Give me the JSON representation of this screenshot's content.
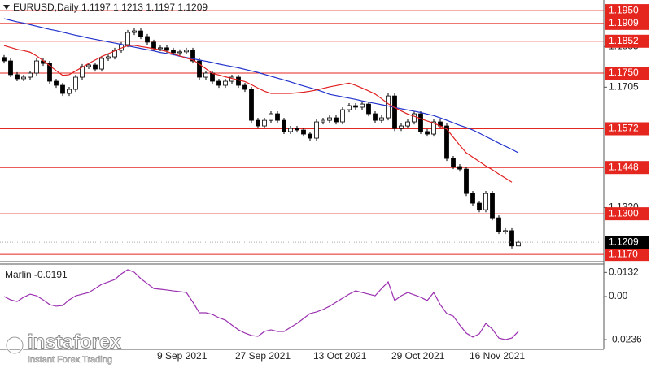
{
  "chart_data": [
    {
      "type": "candlestick",
      "title": "EURUSD,Daily  1.1197 1.1213 1.1197 1.1209",
      "categories": [
        null,
        null,
        null,
        null,
        null,
        null,
        null,
        null,
        null,
        null,
        null,
        null,
        null,
        null,
        null,
        null,
        null,
        null,
        null,
        null,
        null,
        null,
        null,
        null,
        "9 Sep 2021",
        null,
        null,
        null,
        null,
        null,
        null,
        null,
        null,
        null,
        null,
        null,
        "27 Sep 2021",
        null,
        null,
        null,
        null,
        null,
        null,
        null,
        null,
        null,
        null,
        null,
        "13 Oct 2021",
        null,
        null,
        null,
        null,
        null,
        null,
        null,
        null,
        null,
        null,
        null,
        "29 Oct 2021",
        null,
        null,
        null,
        null,
        null,
        null,
        null,
        null,
        null,
        null,
        null,
        "16 Nov 2021",
        null,
        null,
        null,
        null,
        null,
        null,
        null
      ],
      "open": [
        1.18,
        1.1789,
        1.1745,
        1.1732,
        1.1737,
        1.175,
        1.1789,
        1.1781,
        1.1724,
        1.1711,
        1.1685,
        1.1698,
        1.1737,
        1.1771,
        1.1776,
        1.1763,
        1.1797,
        1.1802,
        1.1823,
        1.1841,
        1.188,
        1.1885,
        1.1867,
        1.1849,
        1.1828,
        1.1831,
        1.1823,
        1.1815,
        1.1818,
        1.1823,
        1.1789,
        1.1737,
        1.175,
        1.1724,
        1.1711,
        1.1724,
        1.1737,
        1.1711,
        1.1698,
        1.1599,
        1.1581,
        1.1599,
        1.162,
        1.1599,
        1.1563,
        1.1573,
        1.1568,
        1.1555,
        1.1542,
        1.1594,
        1.1599,
        1.1607,
        1.1594,
        1.1633,
        1.1646,
        1.1641,
        1.1651,
        1.162,
        1.1599,
        1.1607,
        1.1677,
        1.1573,
        1.1581,
        1.1594,
        1.162,
        1.1563,
        1.1555,
        1.1594,
        1.1581,
        1.1477,
        1.1451,
        1.1443,
        1.1365,
        1.1334,
        1.1313,
        1.1365,
        1.1287,
        1.1243,
        1.1246,
        1.1197
      ],
      "high": [
        1.1808,
        1.1797,
        1.1753,
        1.1745,
        1.1758,
        1.1797,
        1.1797,
        1.1789,
        1.1732,
        1.1719,
        1.1706,
        1.1745,
        1.1779,
        1.1784,
        1.1784,
        1.1805,
        1.181,
        1.1831,
        1.1849,
        1.1888,
        1.1893,
        1.1893,
        1.1875,
        1.1857,
        1.1839,
        1.1839,
        1.1831,
        1.1826,
        1.1831,
        1.1831,
        1.1797,
        1.1758,
        1.1758,
        1.1732,
        1.1732,
        1.1745,
        1.1745,
        1.1719,
        1.1706,
        1.1607,
        1.1607,
        1.1628,
        1.1628,
        1.1607,
        1.1581,
        1.1581,
        1.1576,
        1.1563,
        1.1602,
        1.1607,
        1.1615,
        1.1615,
        1.1641,
        1.1654,
        1.1654,
        1.1659,
        1.1659,
        1.1628,
        1.1615,
        1.1685,
        1.1685,
        1.1589,
        1.1602,
        1.1628,
        1.1628,
        1.1571,
        1.1602,
        1.1602,
        1.1589,
        1.1485,
        1.1459,
        1.1451,
        1.1373,
        1.1342,
        1.1373,
        1.1373,
        1.1295,
        1.1254,
        1.1254,
        1.1213
      ],
      "low": [
        1.1781,
        1.1737,
        1.1724,
        1.1724,
        1.1729,
        1.1742,
        1.1773,
        1.1716,
        1.1703,
        1.1677,
        1.1677,
        1.169,
        1.1729,
        1.1763,
        1.1755,
        1.1755,
        1.1789,
        1.1794,
        1.1815,
        1.1833,
        1.1872,
        1.1859,
        1.1841,
        1.182,
        1.182,
        1.1815,
        1.1807,
        1.1807,
        1.181,
        1.1781,
        1.1729,
        1.1729,
        1.1716,
        1.1703,
        1.1703,
        1.1716,
        1.1703,
        1.169,
        1.1591,
        1.1573,
        1.1573,
        1.1591,
        1.1591,
        1.1555,
        1.1555,
        1.156,
        1.1547,
        1.1534,
        1.1534,
        1.1586,
        1.1591,
        1.1586,
        1.1586,
        1.1625,
        1.1633,
        1.1633,
        1.1612,
        1.1591,
        1.1591,
        1.1599,
        1.1565,
        1.1565,
        1.1573,
        1.1586,
        1.1555,
        1.1547,
        1.1547,
        1.1573,
        1.1469,
        1.1443,
        1.1435,
        1.1357,
        1.1326,
        1.1305,
        1.1305,
        1.1279,
        1.1235,
        1.1235,
        1.1189,
        1.1197
      ],
      "close": [
        1.1789,
        1.1745,
        1.1732,
        1.1737,
        1.175,
        1.1789,
        1.1781,
        1.1724,
        1.1711,
        1.1685,
        1.1698,
        1.1737,
        1.1771,
        1.1776,
        1.1763,
        1.1797,
        1.1802,
        1.1823,
        1.1841,
        1.188,
        1.1885,
        1.1867,
        1.1849,
        1.1828,
        1.1831,
        1.1823,
        1.1815,
        1.1818,
        1.1823,
        1.1789,
        1.1737,
        1.175,
        1.1724,
        1.1711,
        1.1724,
        1.1737,
        1.1711,
        1.1698,
        1.1599,
        1.1581,
        1.1599,
        1.162,
        1.1599,
        1.1563,
        1.1573,
        1.1568,
        1.1555,
        1.1542,
        1.1594,
        1.1599,
        1.1607,
        1.1594,
        1.1633,
        1.1646,
        1.1641,
        1.1651,
        1.162,
        1.1599,
        1.1607,
        1.1677,
        1.1573,
        1.1581,
        1.1594,
        1.162,
        1.1563,
        1.1555,
        1.1594,
        1.1581,
        1.1477,
        1.1451,
        1.1443,
        1.1365,
        1.1334,
        1.1313,
        1.1365,
        1.1287,
        1.1243,
        1.1246,
        1.1197,
        1.1209
      ],
      "up_color": "#ffffff",
      "down_color": "#000000",
      "series": [
        {
          "color": "#2233cc",
          "values": [
            1.1924,
            1.1919,
            1.1914,
            1.191,
            1.1905,
            1.19,
            1.1895,
            1.189,
            1.1886,
            1.1881,
            1.1876,
            1.1871,
            1.1867,
            1.1862,
            1.1858,
            1.1854,
            1.185,
            1.1846,
            1.1842,
            1.1837,
            1.1833,
            1.1829,
            1.1825,
            1.1821,
            1.1816,
            1.1813,
            1.1809,
            1.1804,
            1.18,
            1.1796,
            1.1792,
            1.1788,
            1.1784,
            1.1779,
            1.1775,
            1.1771,
            1.1767,
            1.1762,
            1.1757,
            1.1752,
            1.1746,
            1.174,
            1.1734,
            1.1728,
            1.1722,
            1.1715,
            1.1709,
            1.1703,
            1.1697,
            1.169,
            1.1682,
            1.1678,
            1.1674,
            1.167,
            1.1666,
            1.1661,
            1.1657,
            1.1653,
            1.1649,
            1.1645,
            1.164,
            1.1636,
            1.1632,
            1.1628,
            1.1624,
            1.1619,
            1.1614,
            1.1607,
            1.1599,
            1.1591,
            1.1583,
            1.1576,
            1.1568,
            1.1558,
            1.1547,
            1.1537,
            1.1526,
            1.1516,
            1.1506,
            1.1495
          ]
        },
        {
          "color": "#e02020",
          "values": [
            1.1838,
            1.1832,
            1.1826,
            1.1822,
            1.1817,
            1.1805,
            1.179,
            1.1774,
            1.1758,
            1.1743,
            1.1745,
            1.1757,
            1.1769,
            1.1781,
            1.1792,
            1.1803,
            1.1812,
            1.1821,
            1.183,
            1.1838,
            1.1839,
            1.1835,
            1.1832,
            1.1828,
            1.1824,
            1.1819,
            1.1812,
            1.1805,
            1.1798,
            1.1792,
            1.1779,
            1.1764,
            1.1749,
            1.1744,
            1.1738,
            1.1733,
            1.1728,
            1.1723,
            1.1713,
            1.1702,
            1.1692,
            1.1685,
            1.1685,
            1.1685,
            1.1685,
            1.1687,
            1.1689,
            1.1692,
            1.1696,
            1.1701,
            1.1706,
            1.171,
            1.1714,
            1.1718,
            1.1711,
            1.1702,
            1.1693,
            1.1683,
            1.1668,
            1.1652,
            1.164,
            1.1629,
            1.1619,
            1.1612,
            1.1604,
            1.1597,
            1.159,
            1.1581,
            1.1571,
            1.1545,
            1.1519,
            1.1495,
            1.1481,
            1.1467,
            1.1453,
            1.1441,
            1.1427,
            1.1414,
            1.1401,
            null
          ]
        }
      ],
      "ylim": [
        1.1147,
        1.1984
      ],
      "yticks": [
        1.1835,
        1.1705,
        {
          "value": 1.132,
          "label": "1.1320"
        }
      ],
      "levels": [
        {
          "value": 1.195,
          "label": "1.1950"
        },
        1.1909,
        1.1852,
        {
          "value": 1.175,
          "label": "1.1750"
        },
        1.1572,
        1.1448,
        {
          "value": 1.13,
          "label": "1.1300"
        },
        {
          "value": 1.117,
          "label": "1.1170"
        }
      ],
      "level_color": "#e5261f",
      "current_price": 1.1209
    },
    {
      "type": "line",
      "title": "Marlin -0.0191",
      "color": "#9b30b0",
      "values": [
        0,
        -0.0018,
        -0.0027,
        -0.0004,
        0.0013,
        0.0004,
        -0.0018,
        -0.0044,
        -0.0053,
        -0.0049,
        -0.0018,
        0.0004,
        0.0013,
        0.0022,
        0.0044,
        0.0067,
        0.008,
        0.0093,
        0.0124,
        0.0147,
        0.0133,
        0.0098,
        0.0071,
        0.0044,
        0.004,
        0.0036,
        0.0031,
        0.0027,
        0.0022,
        -0.0031,
        -0.0089,
        -0.0089,
        -0.0098,
        -0.0116,
        -0.0129,
        -0.0156,
        -0.0182,
        -0.02,
        -0.0213,
        -0.0218,
        -0.0191,
        -0.0182,
        -0.0191,
        -0.0191,
        -0.0169,
        -0.0147,
        -0.012,
        -0.0093,
        -0.0084,
        -0.0071,
        -0.0053,
        -0.0031,
        -0.0009,
        0.0013,
        0.0031,
        0.0022,
        0.0013,
        0.0004,
        0.0044,
        0.008,
        -0.0022,
        0.0004,
        0.0022,
        0.0009,
        -0.0004,
        -0.0022,
        0.0022,
        -0.0044,
        -0.0093,
        -0.0107,
        -0.0156,
        -0.02,
        -0.0222,
        -0.0204,
        -0.0147,
        -0.0178,
        -0.0227,
        -0.0236,
        -0.0227,
        -0.0191
      ],
      "ylim": [
        -0.0289,
        0.0178
      ],
      "yticks": [
        0.0132,
        {
          "value": 0,
          "label": "0.00"
        },
        -0.0236
      ]
    }
  ],
  "watermark": {
    "brand": "instaforex",
    "tagline": "Instant Forex Trading"
  }
}
